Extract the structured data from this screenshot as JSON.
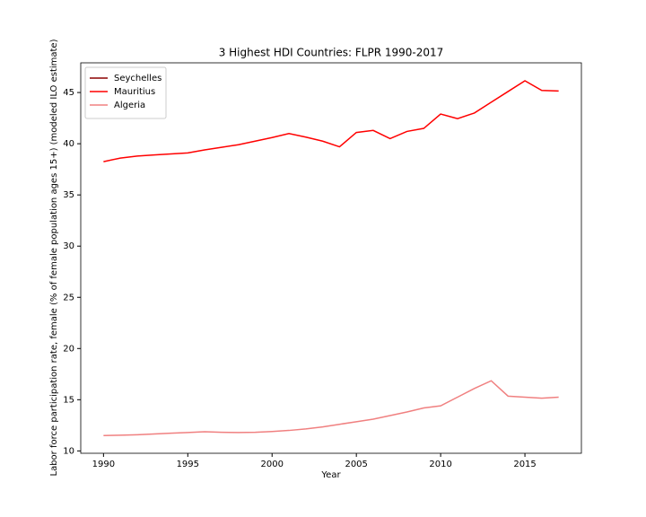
{
  "chart_data": {
    "type": "line",
    "title": "3 Highest HDI Countries: FLPR 1990-2017",
    "x_label": "Year",
    "y_label": "Labor force participation rate, female (% of female population ages 15+) (modeled ILO estimate)",
    "x": [
      1990,
      1991,
      1992,
      1993,
      1994,
      1995,
      1996,
      1997,
      1998,
      1999,
      2000,
      2001,
      2002,
      2003,
      2004,
      2005,
      2006,
      2007,
      2008,
      2009,
      2010,
      2011,
      2012,
      2013,
      2014,
      2015,
      2016,
      2017
    ],
    "series": [
      {
        "name": "Seychelles",
        "color": "#8b0000",
        "values": [
          null,
          null,
          null,
          null,
          null,
          null,
          null,
          null,
          null,
          null,
          null,
          null,
          null,
          null,
          null,
          null,
          null,
          null,
          null,
          null,
          null,
          null,
          null,
          null,
          null,
          null,
          null,
          null
        ]
      },
      {
        "name": "Mauritius",
        "color": "#ff0000",
        "values": [
          38.25,
          38.6,
          38.8,
          38.9,
          39.0,
          39.1,
          39.4,
          39.65,
          39.9,
          40.25,
          40.6,
          41.0,
          40.65,
          40.25,
          39.7,
          41.1,
          41.3,
          40.5,
          41.2,
          41.5,
          42.9,
          42.45,
          43.0,
          44.05,
          45.1,
          46.15,
          45.2,
          45.15
        ]
      },
      {
        "name": "Algeria",
        "color": "#f08080",
        "values": [
          11.5,
          11.53,
          11.58,
          11.65,
          11.73,
          11.8,
          11.87,
          11.82,
          11.8,
          11.82,
          11.9,
          12.0,
          12.15,
          12.35,
          12.6,
          12.85,
          13.1,
          13.45,
          13.8,
          14.2,
          14.4,
          15.25,
          16.1,
          16.85,
          15.35,
          15.25,
          15.15,
          15.25
        ]
      }
    ],
    "xlim": [
      1988.65,
      2018.35
    ],
    "xticks": [
      1990,
      1995,
      2000,
      2005,
      2010,
      2015
    ],
    "ylim": [
      9.77,
      47.9
    ],
    "yticks": [
      10,
      15,
      20,
      25,
      30,
      35,
      40,
      45
    ],
    "grid": false,
    "legend": "upper left"
  }
}
